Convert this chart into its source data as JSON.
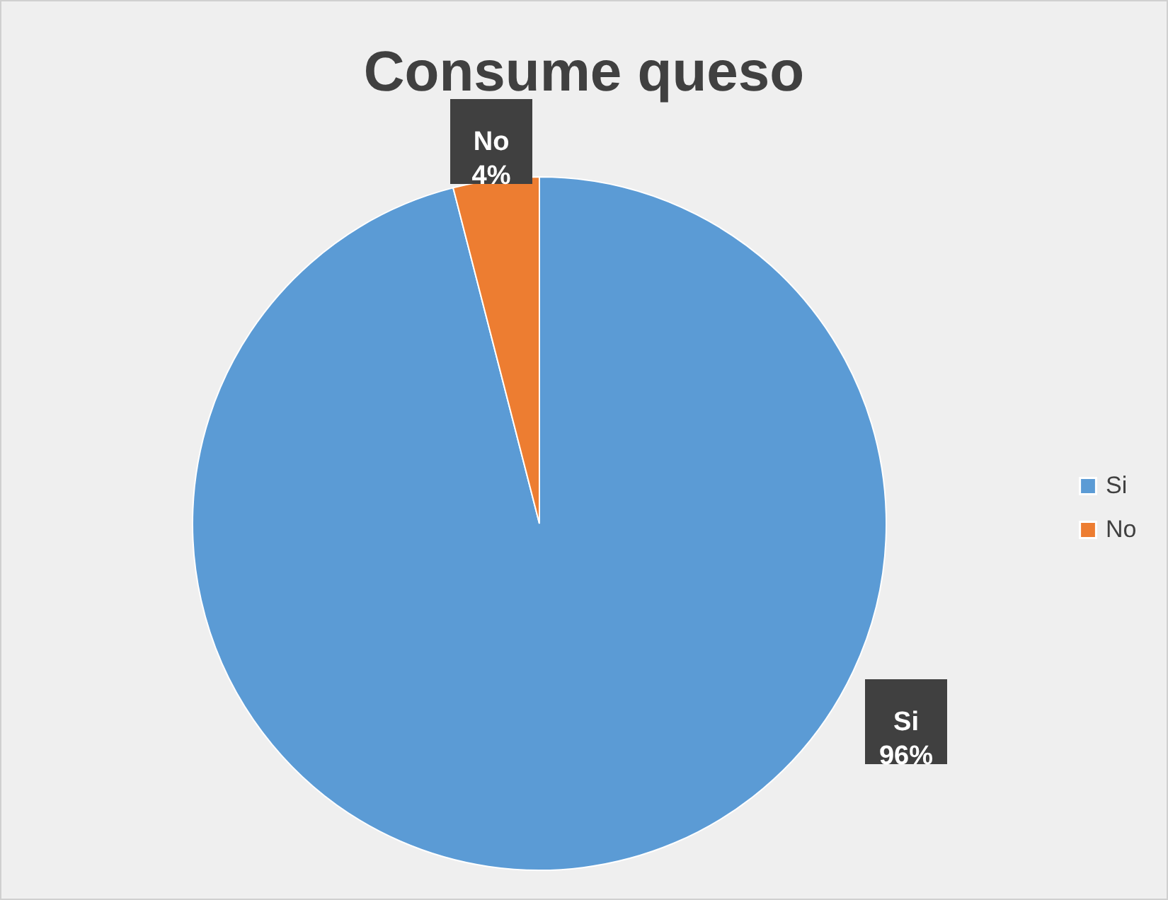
{
  "chart_data": {
    "type": "pie",
    "title": "Consume queso",
    "categories": [
      "Si",
      "No"
    ],
    "values": [
      96,
      4
    ],
    "colors": [
      "#5b9bd5",
      "#ed7d31"
    ],
    "data_labels": true,
    "value_labels": [
      "96%",
      "4%"
    ],
    "legend": "right"
  }
}
